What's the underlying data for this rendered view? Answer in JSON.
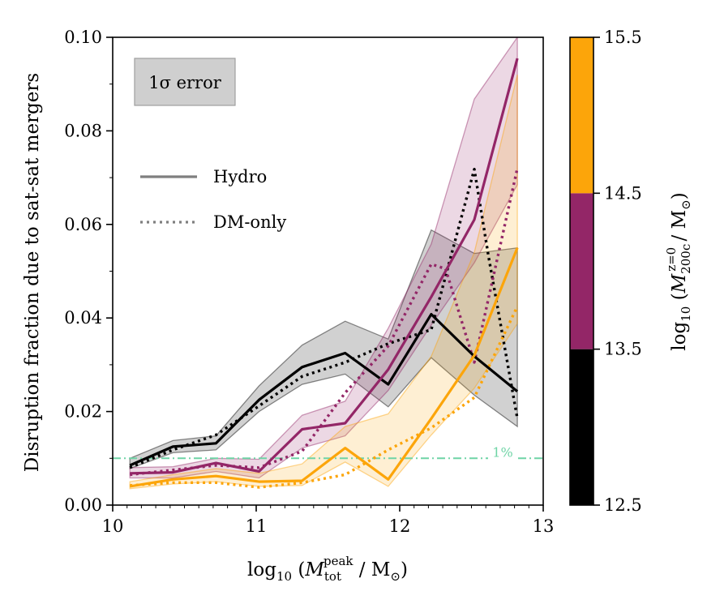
{
  "chart_data": {
    "type": "line",
    "xlabel": "log10 (M_tot^peak / M⊙)",
    "ylabel": "Disruption fraction due to sat-sat mergers",
    "xlim": [
      10,
      13
    ],
    "ylim": [
      0,
      0.1
    ],
    "xticks": [
      "10",
      "11",
      "12",
      "13"
    ],
    "yticks": [
      "0.00",
      "0.02",
      "0.04",
      "0.06",
      "0.08",
      "0.10"
    ],
    "legend": {
      "error_label": "1σ error",
      "hydro_label": "Hydro",
      "dmonly_label": "DM-only",
      "placement": "top-left"
    },
    "reference_line": {
      "y": 0.01,
      "label": "1%",
      "color": "#6fd4a6"
    },
    "colorbar": {
      "label": "log10 (M_200c^z=0 / M⊙)",
      "ticks": [
        "12.5",
        "13.5",
        "14.5",
        "15.5"
      ],
      "bins": [
        {
          "range": [
            12.5,
            13.5
          ],
          "color": "#000000"
        },
        {
          "range": [
            13.5,
            14.5
          ],
          "color": "#932667"
        },
        {
          "range": [
            14.5,
            15.5
          ],
          "color": "#fca50a"
        }
      ]
    },
    "series": [
      {
        "name": "Hydro 12.5-13.5",
        "group": "low",
        "kind": "hydro",
        "color": "#000000",
        "x": [
          10.12,
          10.42,
          10.72,
          11.02,
          11.32,
          11.62,
          11.92,
          12.22,
          12.52,
          12.82
        ],
        "y": [
          0.0085,
          0.0125,
          0.0132,
          0.0225,
          0.0295,
          0.0325,
          0.0258,
          0.0408,
          0.0318,
          0.0243
        ],
        "lo": [
          0.0078,
          0.0112,
          0.0118,
          0.02,
          0.0258,
          0.028,
          0.021,
          0.0315,
          0.0235,
          0.0168
        ],
        "hi": [
          0.01,
          0.0138,
          0.0148,
          0.0255,
          0.0342,
          0.0393,
          0.0355,
          0.0588,
          0.0538,
          0.055
        ]
      },
      {
        "name": "DM-only 12.5-13.5",
        "group": "low",
        "kind": "dm",
        "color": "#000000",
        "x": [
          10.12,
          10.42,
          10.72,
          11.02,
          11.32,
          11.62,
          11.92,
          12.22,
          12.52,
          12.62,
          12.82
        ],
        "y": [
          0.008,
          0.0118,
          0.015,
          0.0212,
          0.0275,
          0.0305,
          0.0345,
          0.0375,
          0.0718,
          0.053,
          0.0185
        ]
      },
      {
        "name": "Hydro 13.5-14.5",
        "group": "mid",
        "kind": "hydro",
        "color": "#932667",
        "x": [
          10.12,
          10.42,
          10.72,
          11.02,
          11.32,
          11.62,
          11.92,
          12.22,
          12.52,
          12.82
        ],
        "y": [
          0.0068,
          0.007,
          0.009,
          0.0072,
          0.0162,
          0.0175,
          0.029,
          0.0445,
          0.061,
          0.0955
        ],
        "lo": [
          0.0058,
          0.0058,
          0.0072,
          0.0058,
          0.0122,
          0.0148,
          0.0245,
          0.0385,
          0.0518,
          0.0685
        ],
        "hi": [
          0.008,
          0.0082,
          0.01,
          0.0098,
          0.0192,
          0.0222,
          0.0378,
          0.0558,
          0.0868,
          0.1
        ]
      },
      {
        "name": "DM-only 13.5-14.5",
        "group": "mid",
        "kind": "dm",
        "color": "#932667",
        "x": [
          10.12,
          10.42,
          10.72,
          11.02,
          11.32,
          11.62,
          11.92,
          12.22,
          12.32,
          12.52,
          12.82
        ],
        "y": [
          0.0065,
          0.0075,
          0.0085,
          0.008,
          0.0115,
          0.024,
          0.034,
          0.0515,
          0.0505,
          0.0305,
          0.072
        ]
      },
      {
        "name": "Hydro 14.5-15.5",
        "group": "high",
        "kind": "hydro",
        "color": "#fca50a",
        "x": [
          10.12,
          10.42,
          10.72,
          11.02,
          11.32,
          11.62,
          11.92,
          12.22,
          12.52,
          12.82
        ],
        "y": [
          0.004,
          0.0055,
          0.0062,
          0.005,
          0.0052,
          0.0122,
          0.0055,
          0.0185,
          0.032,
          0.055
        ],
        "lo": [
          0.0035,
          0.0045,
          0.005,
          0.004,
          0.0042,
          0.0092,
          0.004,
          0.015,
          0.025,
          0.0388
        ],
        "hi": [
          0.005,
          0.0065,
          0.0078,
          0.0068,
          0.0088,
          0.0168,
          0.0195,
          0.0318,
          0.054,
          0.092
        ]
      },
      {
        "name": "DM-only 14.5-15.5",
        "group": "high",
        "kind": "dm",
        "color": "#fca50a",
        "x": [
          10.12,
          10.42,
          10.72,
          11.02,
          11.32,
          11.62,
          11.92,
          12.22,
          12.52,
          12.82
        ],
        "y": [
          0.0042,
          0.0048,
          0.0048,
          0.0038,
          0.0048,
          0.0065,
          0.0118,
          0.0165,
          0.023,
          0.0425
        ]
      }
    ]
  }
}
